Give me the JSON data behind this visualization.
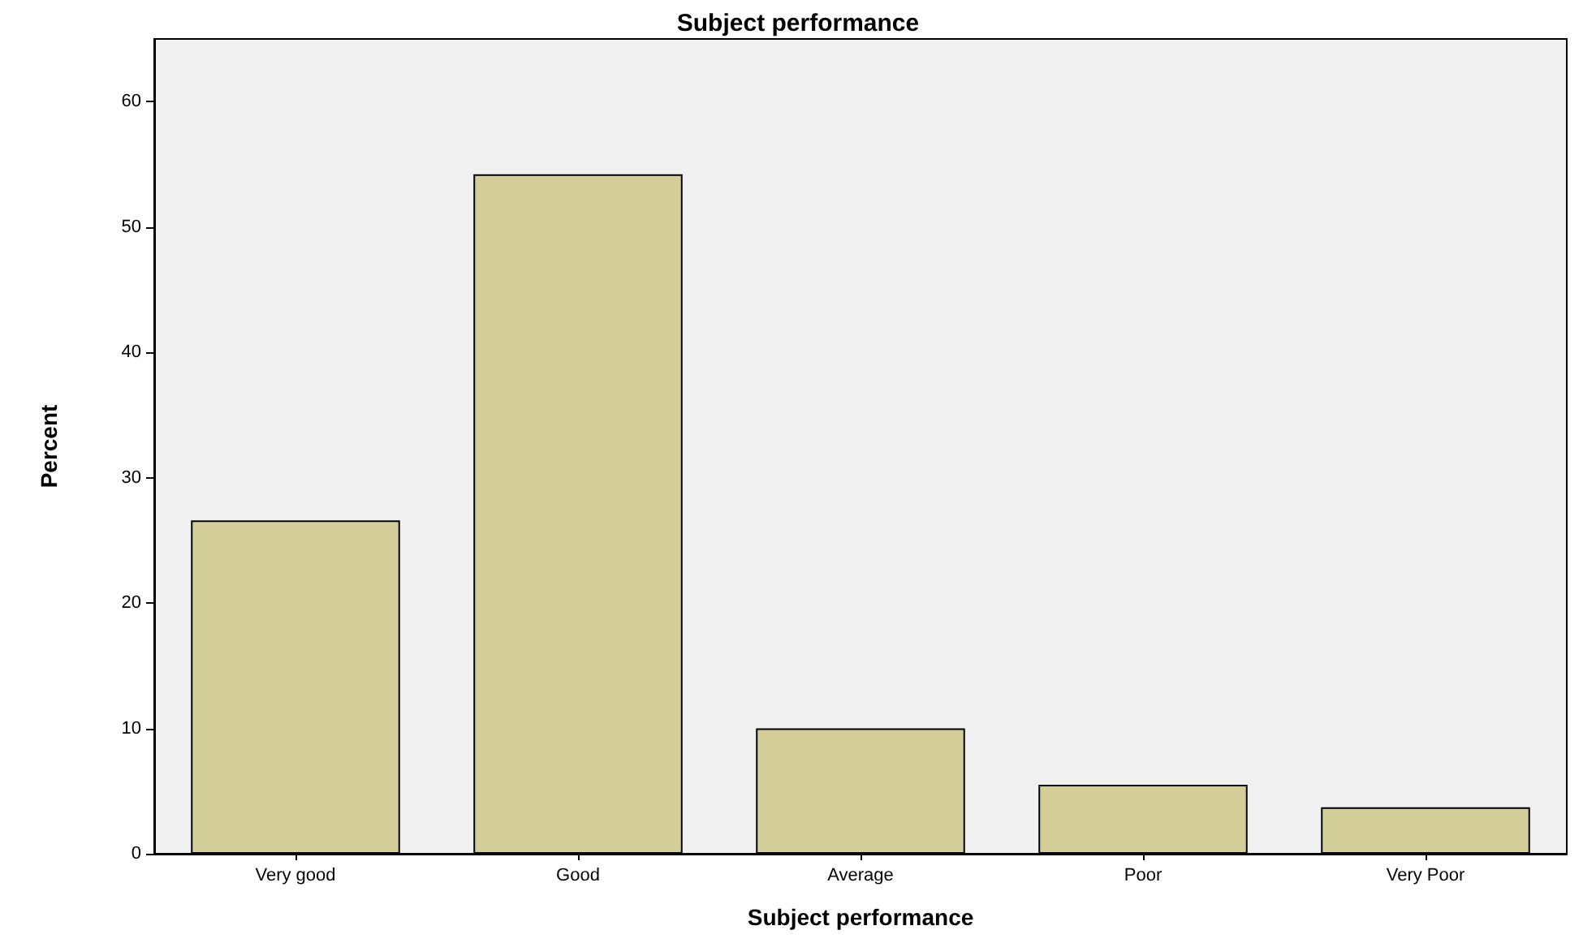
{
  "chart_data": {
    "type": "bar",
    "title": "Subject performance",
    "xlabel": "Subject performance",
    "ylabel": "Percent",
    "categories": [
      "Very good",
      "Good",
      "Average",
      "Poor",
      "Very Poor"
    ],
    "values": [
      26.6,
      54.2,
      10.0,
      5.5,
      3.7
    ],
    "color": "#d3ce97",
    "ylim": [
      0,
      65
    ],
    "yticks": [
      0,
      10,
      20,
      30,
      40,
      50,
      60
    ],
    "grid": false
  }
}
